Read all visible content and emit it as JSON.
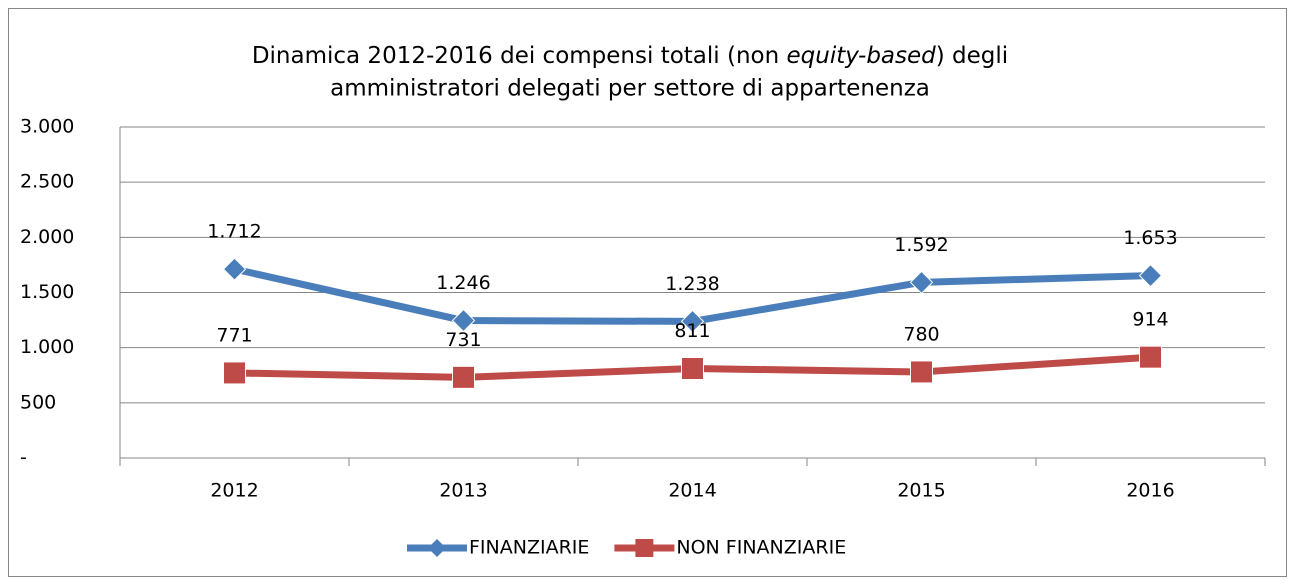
{
  "chart_data": {
    "type": "line",
    "title": [
      "Dinamica 2012-2016 dei compensi totali (non ",
      "equity-based",
      ") degli",
      "amministratori delegati per settore di appartenenza"
    ],
    "categories": [
      "2012",
      "2013",
      "2014",
      "2015",
      "2016"
    ],
    "series": [
      {
        "name": "FINANZIARIE",
        "color": "#4a7ebb",
        "marker": "diamond",
        "values": [
          1712,
          1246,
          1238,
          1592,
          1653
        ],
        "value_labels": [
          "1.712",
          "1.246",
          "1.238",
          "1.592",
          "1.653"
        ]
      },
      {
        "name": "NON FINANZIARIE",
        "color": "#be4b48",
        "marker": "square",
        "values": [
          771,
          731,
          811,
          780,
          914
        ],
        "value_labels": [
          "771",
          "731",
          "811",
          "780",
          "914"
        ]
      }
    ],
    "ylim": [
      0,
      3000
    ],
    "yticks": [
      {
        "value": 0,
        "label": "-"
      },
      500,
      {
        "value": 1000,
        "label": "1.000"
      },
      {
        "value": 1500,
        "label": "1.500"
      },
      {
        "value": 2000,
        "label": "2.000"
      },
      {
        "value": 2500,
        "label": "2.500"
      },
      {
        "value": 3000,
        "label": "3.000"
      }
    ],
    "grid": true,
    "legend": "bottom"
  }
}
